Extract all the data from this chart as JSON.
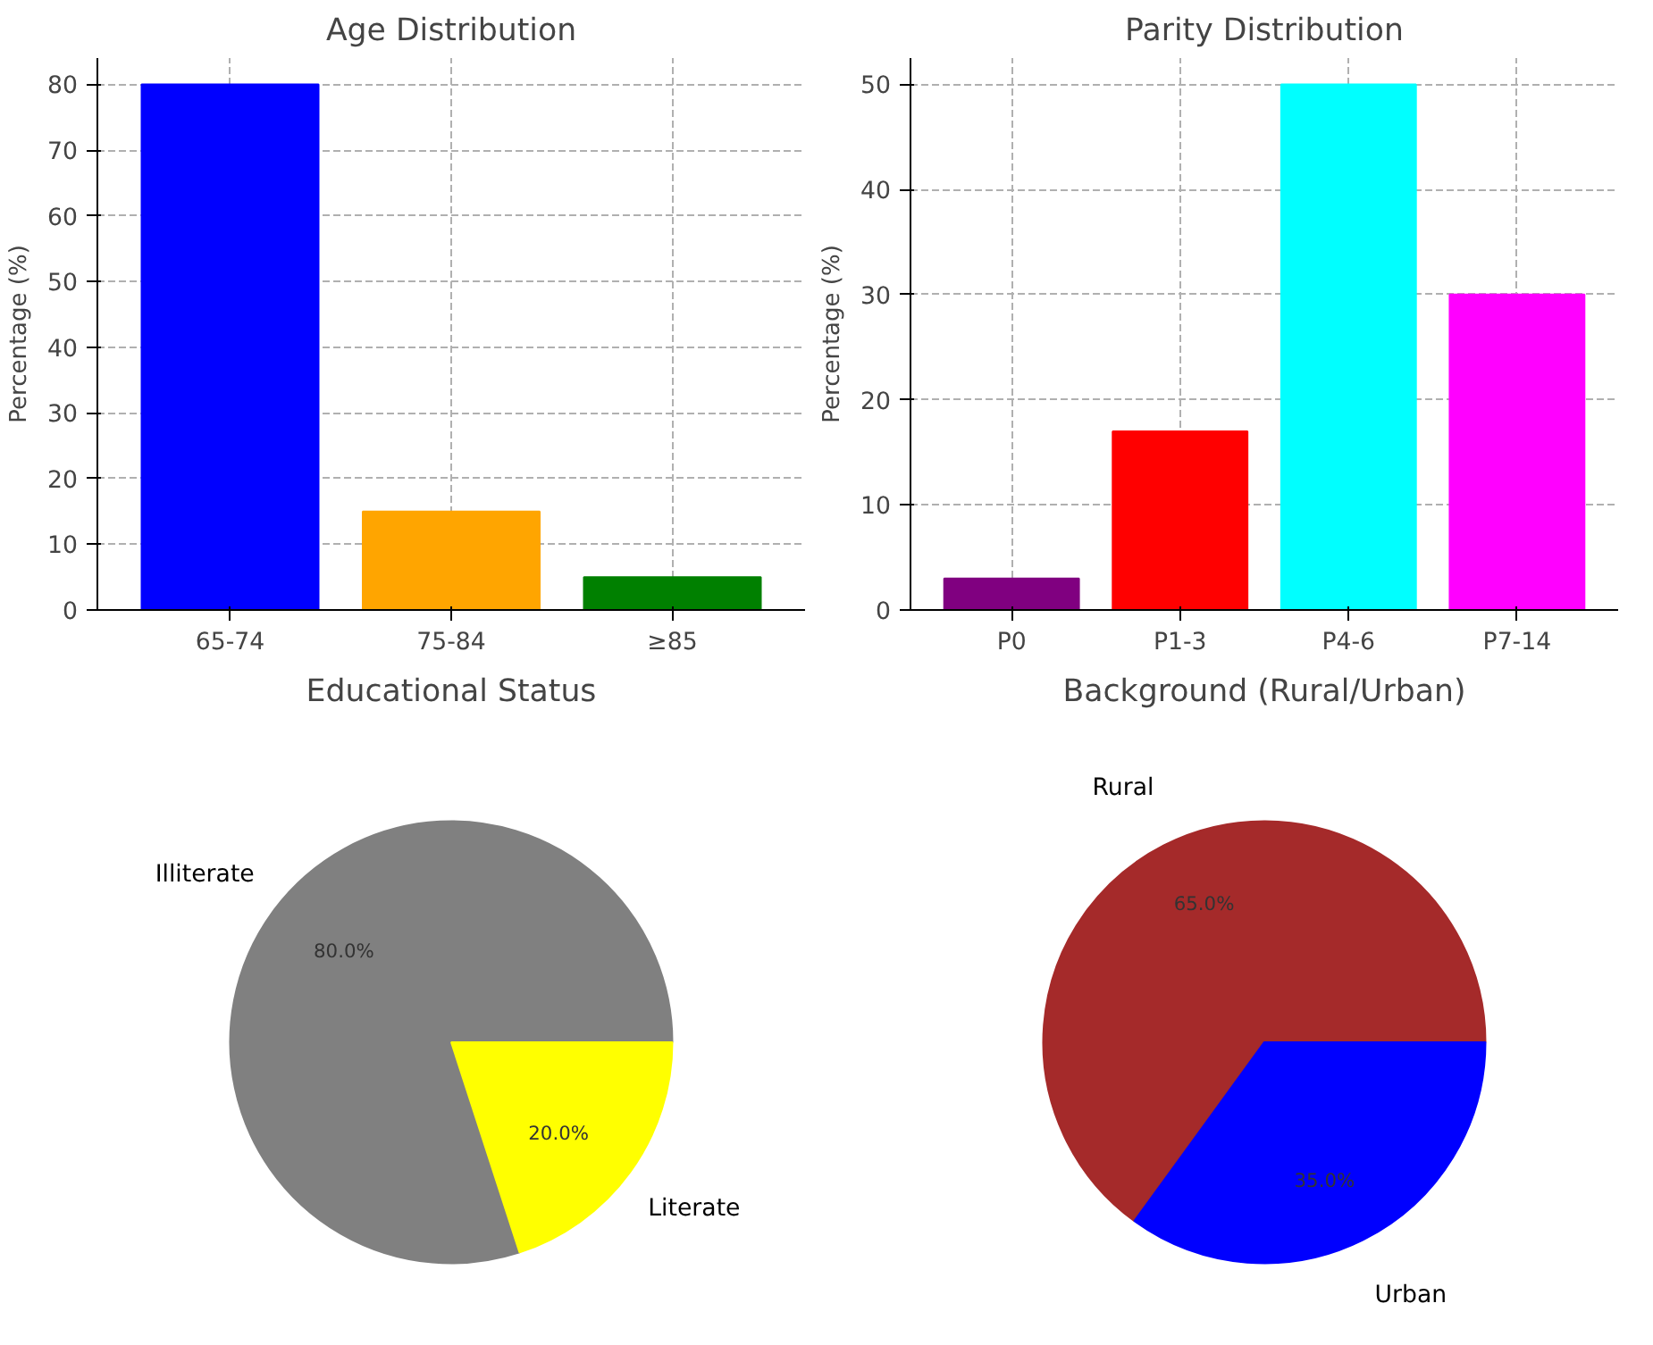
{
  "chart_data": [
    {
      "type": "bar",
      "title": "Age Distribution",
      "ylabel": "Percentage (%)",
      "categories": [
        "65-74",
        "75-84",
        "≥85"
      ],
      "values": [
        80,
        15,
        5
      ],
      "colors": [
        "#0000ff",
        "#ffa500",
        "#008000"
      ],
      "ylim": [
        0,
        84
      ],
      "yticks": [
        0,
        10,
        20,
        30,
        40,
        50,
        60,
        70,
        80
      ],
      "grid": true
    },
    {
      "type": "bar",
      "title": "Parity Distribution",
      "ylabel": "Percentage (%)",
      "categories": [
        "P0",
        "P1-3",
        "P4-6",
        "P7-14"
      ],
      "values": [
        3,
        17,
        50,
        30
      ],
      "colors": [
        "#800080",
        "#ff0000",
        "#00ffff",
        "#ff00ff"
      ],
      "ylim": [
        0,
        52.5
      ],
      "yticks": [
        0,
        10,
        20,
        30,
        40,
        50
      ],
      "grid": true
    },
    {
      "type": "pie",
      "title": "Educational Status",
      "categories": [
        "Illiterate",
        "Literate"
      ],
      "values": [
        80,
        20
      ],
      "colors": [
        "#808080",
        "#ffff00"
      ],
      "value_labels": [
        "80.0%",
        "20.0%"
      ]
    },
    {
      "type": "pie",
      "title": "Background (Rural/Urban)",
      "categories": [
        "Rural",
        "Urban"
      ],
      "values": [
        65,
        35
      ],
      "colors": [
        "#a52a2a",
        "#0000ff"
      ],
      "value_labels": [
        "65.0%",
        "35.0%"
      ]
    }
  ]
}
